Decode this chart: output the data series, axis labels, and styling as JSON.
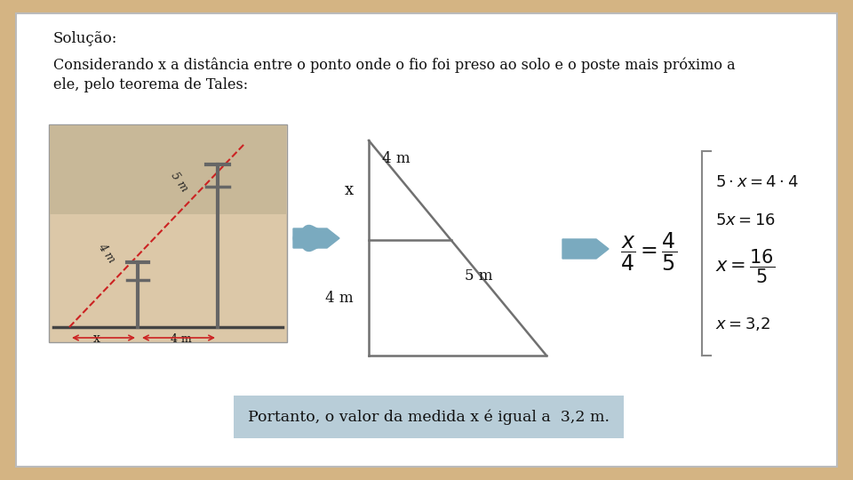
{
  "bg_color": "#d4b483",
  "panel_color": "#ffffff",
  "title1": "Solução:",
  "text1": "Considerando x a distância entre o ponto onde o fio foi preso ao solo e o poste mais próximo a",
  "text2": "ele, pelo teorema de Tales:",
  "conclusion_text": "Portanto, o valor da medida x é igual a  3,2 m.",
  "conclusion_bg": "#b8cdd8",
  "diagram_line_color": "#707070",
  "arrow_color": "#7aaabf",
  "eq1": "$5 \\cdot x = 4 \\cdot 4$",
  "eq2": "$5x = 16$",
  "eq3": "$x = \\dfrac{16}{5}$",
  "eq4": "$x = 3{,}2$",
  "ratio_eq": "$\\dfrac{x}{4} = \\dfrac{4}{5}$",
  "label_x": "x",
  "label_4m_left": "4 m",
  "label_4m_top": "4 m",
  "label_5m": "5 m"
}
